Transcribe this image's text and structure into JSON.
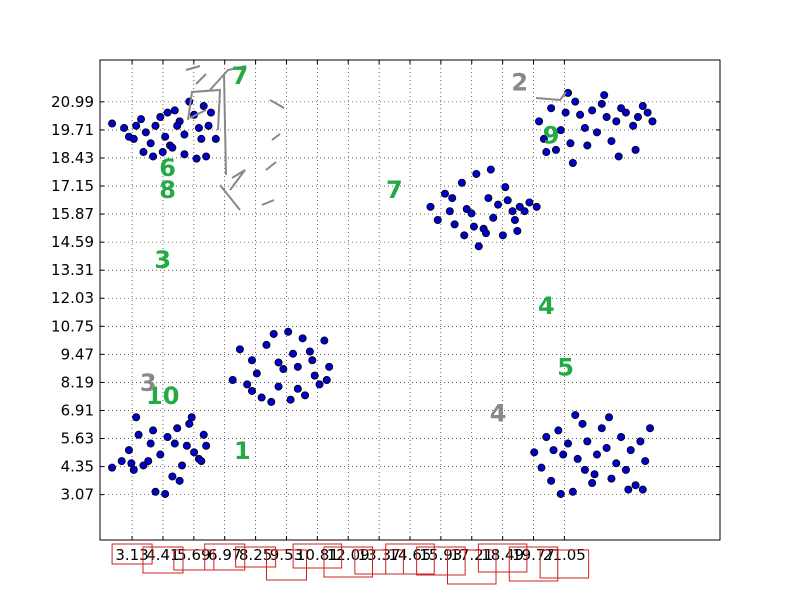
{
  "chart_data": {
    "type": "scatter",
    "title": "",
    "xlabel": "",
    "ylabel": "",
    "xlim": [
      1.8,
      27.5
    ],
    "ylim": [
      1.0,
      22.9
    ],
    "grid": true,
    "x_ticks": [
      "3.13",
      "4.41",
      "5.69",
      "6.97",
      "8.25",
      "9.53",
      "10.81",
      "12.09",
      "13.37",
      "14.65",
      "15.93",
      "17.21",
      "18.49",
      "19.77",
      "21.05"
    ],
    "y_ticks": [
      "20.99",
      "19.71",
      "18.43",
      "17.15",
      "15.87",
      "14.59",
      "13.31",
      "12.03",
      "10.75",
      "9.47",
      "8.19",
      "6.91",
      "5.63",
      "4.35",
      "3.07"
    ],
    "marker_color": "#0000cc",
    "annotations": [
      {
        "text": "6",
        "x": 4.6,
        "y": 17.6,
        "color": "#22aa44"
      },
      {
        "text": "8",
        "x": 4.6,
        "y": 16.6,
        "color": "#22aa44"
      },
      {
        "text": "3",
        "x": 4.4,
        "y": 13.4,
        "color": "#22aa44"
      },
      {
        "text": "7",
        "x": 7.6,
        "y": 21.8,
        "color": "#22aa44"
      },
      {
        "text": "7",
        "x": 14.0,
        "y": 16.6,
        "color": "#22aa44"
      },
      {
        "text": "4",
        "x": 20.3,
        "y": 11.3,
        "color": "#22aa44"
      },
      {
        "text": "5",
        "x": 21.1,
        "y": 8.5,
        "color": "#22aa44"
      },
      {
        "text": "10",
        "x": 4.4,
        "y": 7.2,
        "color": "#22aa44"
      },
      {
        "text": "1",
        "x": 7.7,
        "y": 4.7,
        "color": "#22aa44"
      },
      {
        "text": "9",
        "x": 20.5,
        "y": 19.1,
        "color": "#22aa44"
      },
      {
        "text": "3",
        "x": 3.8,
        "y": 7.8,
        "color": "#888888"
      },
      {
        "text": "2",
        "x": 19.2,
        "y": 21.5,
        "color": "#888888"
      },
      {
        "text": "4",
        "x": 18.3,
        "y": 6.4,
        "color": "#888888"
      }
    ],
    "series": [
      {
        "values": [
          [
            2.3,
            20.0
          ],
          [
            2.8,
            19.8
          ],
          [
            3.0,
            19.4
          ],
          [
            3.3,
            19.9
          ],
          [
            3.5,
            20.2
          ],
          [
            3.7,
            19.6
          ],
          [
            3.9,
            19.1
          ],
          [
            4.1,
            19.9
          ],
          [
            4.3,
            20.3
          ],
          [
            4.5,
            19.4
          ],
          [
            4.7,
            19.0
          ],
          [
            4.9,
            20.6
          ],
          [
            5.1,
            20.1
          ],
          [
            5.3,
            19.5
          ],
          [
            5.5,
            21.0
          ],
          [
            5.7,
            20.4
          ],
          [
            5.9,
            19.8
          ],
          [
            6.1,
            20.8
          ],
          [
            6.4,
            20.5
          ],
          [
            6.6,
            19.3
          ],
          [
            3.2,
            19.3
          ],
          [
            3.6,
            18.7
          ],
          [
            4.0,
            18.5
          ],
          [
            4.4,
            18.7
          ],
          [
            4.8,
            18.9
          ],
          [
            5.3,
            18.6
          ],
          [
            5.8,
            18.4
          ],
          [
            6.2,
            18.5
          ],
          [
            6.0,
            19.3
          ],
          [
            4.6,
            20.5
          ],
          [
            5.0,
            19.9
          ],
          [
            6.3,
            19.9
          ]
        ]
      },
      {
        "values": [
          [
            7.3,
            8.3
          ],
          [
            7.6,
            9.7
          ],
          [
            7.9,
            8.1
          ],
          [
            8.1,
            9.2
          ],
          [
            8.3,
            8.6
          ],
          [
            8.5,
            7.5
          ],
          [
            8.7,
            9.9
          ],
          [
            9.0,
            10.4
          ],
          [
            9.2,
            9.1
          ],
          [
            9.4,
            8.8
          ],
          [
            9.6,
            10.5
          ],
          [
            9.8,
            9.5
          ],
          [
            10.0,
            8.9
          ],
          [
            10.2,
            10.2
          ],
          [
            10.5,
            9.6
          ],
          [
            10.7,
            8.5
          ],
          [
            10.9,
            8.1
          ],
          [
            11.1,
            10.1
          ],
          [
            11.3,
            8.9
          ],
          [
            8.9,
            7.3
          ],
          [
            9.7,
            7.4
          ],
          [
            10.3,
            7.6
          ],
          [
            10.6,
            9.2
          ],
          [
            9.2,
            8.0
          ],
          [
            8.1,
            7.8
          ],
          [
            11.2,
            8.3
          ],
          [
            10.0,
            7.9
          ]
        ]
      },
      {
        "values": [
          [
            2.3,
            4.3
          ],
          [
            2.7,
            4.6
          ],
          [
            3.0,
            5.1
          ],
          [
            3.3,
            6.6
          ],
          [
            3.6,
            4.4
          ],
          [
            3.9,
            5.4
          ],
          [
            4.1,
            3.2
          ],
          [
            4.3,
            4.9
          ],
          [
            4.6,
            5.7
          ],
          [
            4.8,
            3.9
          ],
          [
            5.0,
            6.1
          ],
          [
            5.2,
            4.4
          ],
          [
            5.4,
            5.3
          ],
          [
            5.6,
            6.6
          ],
          [
            5.9,
            4.7
          ],
          [
            6.1,
            5.8
          ],
          [
            3.4,
            5.8
          ],
          [
            3.8,
            4.6
          ],
          [
            4.5,
            3.1
          ],
          [
            5.1,
            3.7
          ],
          [
            5.7,
            5.0
          ],
          [
            6.2,
            5.3
          ],
          [
            3.2,
            4.2
          ],
          [
            4.0,
            6.0
          ],
          [
            4.9,
            5.4
          ],
          [
            5.5,
            6.3
          ],
          [
            3.1,
            4.5
          ],
          [
            6.0,
            4.6
          ]
        ]
      },
      {
        "values": [
          [
            15.5,
            16.2
          ],
          [
            15.8,
            15.6
          ],
          [
            16.1,
            16.8
          ],
          [
            16.3,
            16.0
          ],
          [
            16.5,
            15.4
          ],
          [
            16.8,
            17.3
          ],
          [
            17.0,
            16.1
          ],
          [
            17.2,
            15.9
          ],
          [
            17.5,
            14.4
          ],
          [
            17.7,
            15.2
          ],
          [
            17.9,
            16.6
          ],
          [
            18.1,
            15.7
          ],
          [
            18.3,
            16.3
          ],
          [
            18.5,
            14.9
          ],
          [
            18.7,
            16.5
          ],
          [
            19.0,
            15.6
          ],
          [
            19.2,
            16.2
          ],
          [
            19.4,
            16.0
          ],
          [
            19.6,
            16.4
          ],
          [
            19.9,
            16.2
          ],
          [
            16.9,
            14.9
          ],
          [
            17.4,
            17.7
          ],
          [
            18.0,
            17.9
          ],
          [
            18.6,
            17.1
          ],
          [
            19.1,
            15.1
          ],
          [
            17.8,
            15.0
          ],
          [
            16.4,
            16.6
          ],
          [
            18.9,
            16.0
          ],
          [
            17.3,
            15.3
          ]
        ]
      },
      {
        "values": [
          [
            20.0,
            20.1
          ],
          [
            20.2,
            19.3
          ],
          [
            20.5,
            20.7
          ],
          [
            20.7,
            18.8
          ],
          [
            20.9,
            19.7
          ],
          [
            21.1,
            20.5
          ],
          [
            21.3,
            19.1
          ],
          [
            21.5,
            21.0
          ],
          [
            21.7,
            20.4
          ],
          [
            21.9,
            19.8
          ],
          [
            22.2,
            20.6
          ],
          [
            22.4,
            19.6
          ],
          [
            22.6,
            20.9
          ],
          [
            22.8,
            20.3
          ],
          [
            23.0,
            19.2
          ],
          [
            23.2,
            20.1
          ],
          [
            23.4,
            20.7
          ],
          [
            23.6,
            20.5
          ],
          [
            23.9,
            19.9
          ],
          [
            24.1,
            20.3
          ],
          [
            24.3,
            20.8
          ],
          [
            24.5,
            20.5
          ],
          [
            24.7,
            20.1
          ],
          [
            20.3,
            18.7
          ],
          [
            21.4,
            18.2
          ],
          [
            22.0,
            19.0
          ],
          [
            23.3,
            18.5
          ],
          [
            24.0,
            18.8
          ],
          [
            21.2,
            21.4
          ],
          [
            22.7,
            21.3
          ]
        ]
      },
      {
        "values": [
          [
            19.8,
            5.0
          ],
          [
            20.1,
            4.3
          ],
          [
            20.3,
            5.7
          ],
          [
            20.5,
            3.7
          ],
          [
            20.8,
            6.0
          ],
          [
            21.0,
            4.9
          ],
          [
            21.2,
            5.4
          ],
          [
            21.4,
            3.2
          ],
          [
            21.6,
            4.7
          ],
          [
            21.8,
            6.3
          ],
          [
            22.0,
            5.5
          ],
          [
            22.2,
            3.6
          ],
          [
            22.4,
            4.9
          ],
          [
            22.6,
            6.1
          ],
          [
            22.8,
            5.2
          ],
          [
            23.0,
            3.8
          ],
          [
            23.2,
            4.5
          ],
          [
            23.4,
            5.7
          ],
          [
            23.6,
            4.2
          ],
          [
            23.8,
            5.1
          ],
          [
            24.0,
            3.5
          ],
          [
            24.2,
            5.5
          ],
          [
            24.4,
            4.6
          ],
          [
            24.6,
            6.1
          ],
          [
            20.6,
            5.1
          ],
          [
            21.9,
            4.2
          ],
          [
            22.9,
            6.6
          ],
          [
            23.7,
            3.3
          ],
          [
            21.5,
            6.7
          ],
          [
            20.9,
            3.1
          ],
          [
            22.3,
            4.0
          ],
          [
            24.3,
            3.3
          ]
        ]
      }
    ]
  }
}
